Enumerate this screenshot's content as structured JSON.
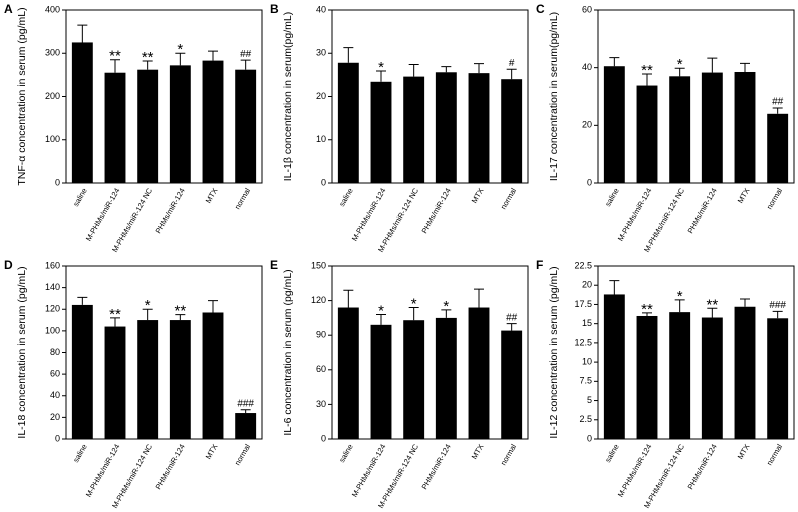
{
  "chart_data": [
    {
      "type": "bar",
      "panel_label": "A",
      "y_label": "TNF-α concentration in serum (pg/mL)",
      "categories": [
        "saline",
        "M-PHMs/miR-124",
        "M-PHMs/miR-124 NC",
        "PHMs/miR-124",
        "MTX",
        "normal"
      ],
      "values": [
        325,
        255,
        262,
        272,
        283,
        262
      ],
      "errors": [
        40,
        30,
        20,
        28,
        22,
        22
      ],
      "annotations": [
        null,
        "**",
        "**",
        "*",
        null,
        "##"
      ],
      "color": "#000000",
      "ylim": [
        0,
        400
      ],
      "yticks": [
        0,
        100,
        200,
        300,
        400
      ]
    },
    {
      "type": "bar",
      "panel_label": "B",
      "y_label": "IL-1β concentration in serum(pg/mL)",
      "categories": [
        "saline",
        "M-PHMs/miR-124",
        "M-PHMs/miR-124 NC",
        "PHMs/miR-124",
        "MTX",
        "normal"
      ],
      "values": [
        27.8,
        23.4,
        24.6,
        25.6,
        25.4,
        24
      ],
      "errors": [
        3.5,
        2.5,
        2.8,
        1.3,
        2.2,
        2.3
      ],
      "annotations": [
        null,
        "*",
        null,
        null,
        null,
        "#"
      ],
      "color": "#000000",
      "ylim": [
        0,
        40
      ],
      "yticks": [
        0,
        10,
        20,
        30,
        40
      ]
    },
    {
      "type": "bar",
      "panel_label": "C",
      "y_label": "IL-17 concentration in serum(pg/mL)",
      "categories": [
        "saline",
        "M-PHMs/miR-124",
        "M-PHMs/miR-124 NC",
        "PHMs/miR-124",
        "MTX",
        "normal"
      ],
      "values": [
        40.5,
        33.8,
        37,
        38.3,
        38.5,
        24
      ],
      "errors": [
        3,
        4,
        2.8,
        5,
        3,
        2
      ],
      "annotations": [
        null,
        "**",
        "*",
        null,
        null,
        "##"
      ],
      "color": "#000000",
      "ylim": [
        0,
        60
      ],
      "yticks": [
        0,
        20,
        40,
        60
      ]
    },
    {
      "type": "bar",
      "panel_label": "D",
      "y_label": "IL-18 concentration in serum (pg/mL)",
      "categories": [
        "saline",
        "M-PHMs/miR-124",
        "M-PHMs/miR-124 NC",
        "PHMs/miR-124",
        "MTX",
        "normal"
      ],
      "values": [
        124,
        104,
        110,
        110,
        117,
        24
      ],
      "errors": [
        7,
        8,
        10,
        5,
        11,
        3
      ],
      "annotations": [
        null,
        "**",
        "*",
        "**",
        null,
        "###"
      ],
      "color": "#000000",
      "ylim": [
        0,
        160
      ],
      "yticks": [
        0,
        20,
        40,
        60,
        80,
        100,
        120,
        140,
        160
      ]
    },
    {
      "type": "bar",
      "panel_label": "E",
      "y_label": "IL-6 concentration in serum (pg/mL)",
      "categories": [
        "saline",
        "M-PHMs/miR-124",
        "M-PHMs/miR-124 NC",
        "PHMs/miR-124",
        "MTX",
        "normal"
      ],
      "values": [
        114,
        99,
        103,
        105,
        114,
        94
      ],
      "errors": [
        15,
        9,
        11,
        7,
        16,
        6
      ],
      "annotations": [
        null,
        "*",
        "*",
        "*",
        null,
        "##"
      ],
      "color": "#000000",
      "ylim": [
        0,
        150
      ],
      "yticks": [
        0,
        30,
        60,
        90,
        120,
        150
      ]
    },
    {
      "type": "bar",
      "panel_label": "F",
      "y_label": "IL-12 concentration in serum (pg/mL)",
      "categories": [
        "saline",
        "M-PHMs/miR-124",
        "M-PHMs/miR-124 NC",
        "PHMs/miR-124",
        "MTX",
        "normal"
      ],
      "values": [
        18.8,
        16,
        16.5,
        15.8,
        17.2,
        15.7
      ],
      "errors": [
        1.8,
        0.4,
        1.6,
        1.2,
        1,
        0.9
      ],
      "annotations": [
        null,
        "**",
        "*",
        "**",
        null,
        "###"
      ],
      "color": "#000000",
      "ylim": [
        0,
        22.5
      ],
      "yticks": [
        0,
        2.5,
        5,
        7.5,
        10,
        12.5,
        15,
        17.5,
        20,
        22.5
      ]
    }
  ]
}
